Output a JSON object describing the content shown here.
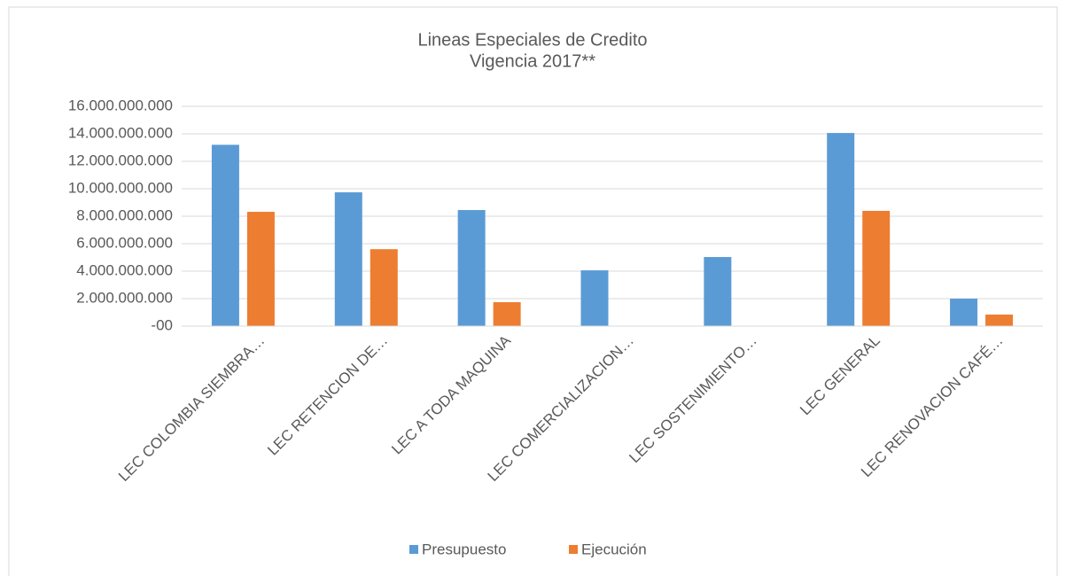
{
  "chart_data": {
    "type": "bar",
    "title": "Lineas Especiales de Credito",
    "subtitle": "Vigencia 2017**",
    "categories": [
      "LEC COLOMBIA SIEMBRA…",
      "LEC RETENCION DE…",
      "LEC A TODA MAQUINA",
      "LEC COMERCIALIZACION…",
      "LEC SOSTENIMIENTO…",
      "LEC GENERAL",
      "LEC RENOVACION CAFÉ…"
    ],
    "series": [
      {
        "name": "Presupuesto",
        "color": "#5b9bd5",
        "values": [
          13200000000,
          9740000000,
          8450000000,
          4060000000,
          5030000000,
          14060000000,
          2000000000
        ]
      },
      {
        "name": "Ejecución",
        "color": "#ed7d31",
        "values": [
          8320000000,
          5600000000,
          1740000000,
          0,
          0,
          8390000000,
          840000000
        ]
      }
    ],
    "ylim": [
      0,
      16000000000
    ],
    "yticks": [
      {
        "value": 0,
        "label": "-00"
      },
      {
        "value": 2000000000,
        "label": "2.000.000.000"
      },
      {
        "value": 4000000000,
        "label": "4.000.000.000"
      },
      {
        "value": 6000000000,
        "label": "6.000.000.000"
      },
      {
        "value": 8000000000,
        "label": "8.000.000.000"
      },
      {
        "value": 10000000000,
        "label": "10.000.000.000"
      },
      {
        "value": 12000000000,
        "label": "12.000.000.000"
      },
      {
        "value": 14000000000,
        "label": "14.000.000.000"
      },
      {
        "value": 16000000000,
        "label": "16.000.000.000"
      }
    ],
    "grid": true,
    "legend": "bottom"
  }
}
